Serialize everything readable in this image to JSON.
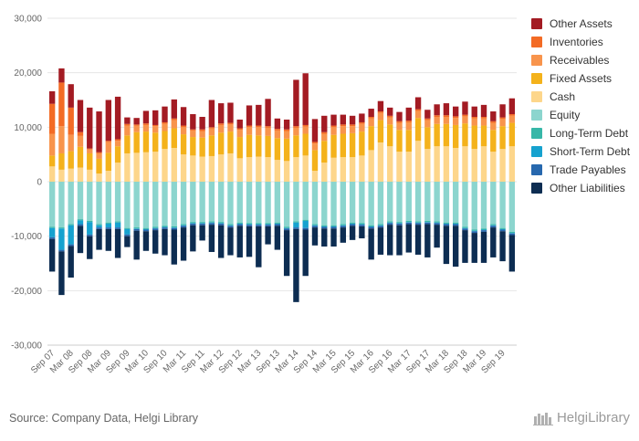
{
  "chart_data": {
    "type": "bar",
    "stacked": true,
    "y_ticks": [
      "30,000",
      "20,000",
      "10,000",
      "0",
      "-10,000",
      "-20,000",
      "-30,000"
    ],
    "ylim": [
      -30000,
      30000
    ],
    "grid": true,
    "legend_position": "right",
    "x_tick_labels": [
      "Sep 07",
      "Mar 08",
      "Sep 08",
      "Mar 09",
      "Sep 09",
      "Mar 10",
      "Sep 10",
      "Mar 11",
      "Sep 11",
      "Mar 12",
      "Sep 12",
      "Mar 13",
      "Sep 13",
      "Mar 14",
      "Sep 14",
      "Mar 15",
      "Sep 15",
      "Mar 16",
      "Sep 16",
      "Mar 17",
      "Sep 17",
      "Mar 18",
      "Sep 18",
      "Mar 19",
      "Sep 19"
    ],
    "categories": [
      "Sep 07",
      "Dec 07",
      "Mar 08",
      "Jun 08",
      "Sep 08",
      "Dec 08",
      "Mar 09",
      "Jun 09",
      "Sep 09",
      "Dec 09",
      "Mar 10",
      "Jun 10",
      "Sep 10",
      "Dec 10",
      "Mar 11",
      "Jun 11",
      "Sep 11",
      "Dec 11",
      "Mar 12",
      "Jun 12",
      "Sep 12",
      "Dec 12",
      "Mar 13",
      "Jun 13",
      "Sep 13",
      "Dec 13",
      "Mar 14",
      "Jun 14",
      "Sep 14",
      "Dec 14",
      "Mar 15",
      "Jun 15",
      "Sep 15",
      "Dec 15",
      "Mar 16",
      "Jun 16",
      "Sep 16",
      "Dec 16",
      "Mar 17",
      "Jun 17",
      "Sep 17",
      "Dec 17",
      "Mar 18",
      "Jun 18",
      "Sep 18",
      "Dec 18",
      "Mar 19",
      "Jun 19",
      "Sep 19",
      "Dec 19"
    ],
    "series": [
      {
        "name": "Cash",
        "side": "asset",
        "color": "#fdd68b",
        "values": [
          2800,
          2200,
          2400,
          2600,
          2200,
          1500,
          2000,
          3500,
          5200,
          5300,
          5400,
          5500,
          6000,
          6200,
          5000,
          4800,
          4600,
          4700,
          5000,
          5200,
          4300,
          4500,
          4600,
          4500,
          4000,
          3800,
          4500,
          4800,
          2000,
          3500,
          4400,
          4500,
          4500,
          4800,
          5800,
          7200,
          6500,
          5500,
          5500,
          7500,
          6000,
          6500,
          6500,
          6200,
          6500,
          6000,
          6500,
          5500,
          6000,
          6500
        ]
      },
      {
        "name": "Fixed Assets",
        "side": "asset",
        "color": "#f4b21b",
        "values": [
          2000,
          3000,
          3200,
          3800,
          3000,
          2700,
          3300,
          3000,
          3300,
          3800,
          3800,
          3500,
          3300,
          3600,
          3700,
          3400,
          3500,
          3800,
          4000,
          4000,
          3900,
          4100,
          3900,
          3900,
          4000,
          4100,
          4000,
          4000,
          3800,
          4000,
          4200,
          4300,
          4400,
          4400,
          4400,
          4100,
          4000,
          4000,
          4000,
          4200,
          4000,
          4100,
          4100,
          4200,
          4200,
          4300,
          3800,
          4000,
          4200,
          4300
        ]
      },
      {
        "name": "Receivables",
        "side": "asset",
        "color": "#f8944c",
        "values": [
          4000,
          5000,
          3000,
          2000,
          700,
          1000,
          2000,
          1000,
          1800,
          1200,
          1200,
          1200,
          1300,
          1500,
          1300,
          1200,
          1200,
          1300,
          1400,
          1300,
          1300,
          1400,
          1500,
          1500,
          1400,
          1400,
          1400,
          1300,
          1200,
          1300,
          1400,
          1400,
          1300,
          1400,
          1400,
          1300,
          1300,
          1300,
          1400,
          1300,
          1300,
          1300,
          1300,
          1300,
          1300,
          1300,
          1300,
          1300,
          1300,
          1300
        ]
      },
      {
        "name": "Inventories",
        "side": "asset",
        "color": "#f36b25",
        "values": [
          5500,
          8000,
          5000,
          700,
          200,
          200,
          200,
          300,
          300,
          200,
          300,
          200,
          300,
          300,
          300,
          200,
          300,
          200,
          300,
          300,
          300,
          300,
          300,
          300,
          300,
          300,
          300,
          300,
          300,
          300,
          300,
          300,
          300,
          300,
          300,
          300,
          300,
          300,
          300,
          300,
          300,
          300,
          300,
          300,
          300,
          300,
          300,
          300,
          300,
          300
        ]
      },
      {
        "name": "Other Assets",
        "side": "asset",
        "color": "#a31b23",
        "values": [
          2300,
          2600,
          4300,
          5900,
          7500,
          7500,
          7500,
          7800,
          1200,
          1200,
          2300,
          2700,
          2900,
          3500,
          3400,
          2800,
          2300,
          5000,
          3700,
          3700,
          1600,
          3700,
          3800,
          5000,
          1900,
          1800,
          8500,
          9500,
          4200,
          3000,
          2000,
          1800,
          1600,
          1600,
          1500,
          1900,
          1500,
          1700,
          2400,
          2200,
          1600,
          2000,
          2200,
          1800,
          2400,
          1900,
          2200,
          1800,
          2400,
          2900
        ]
      },
      {
        "name": "Equity",
        "side": "liability",
        "color": "#8cd5ce",
        "values": [
          8300,
          8400,
          7800,
          6900,
          7200,
          7800,
          7500,
          7300,
          8500,
          8400,
          8500,
          8300,
          8100,
          8200,
          7800,
          7400,
          7400,
          7300,
          7400,
          7800,
          7500,
          7600,
          7600,
          7600,
          7500,
          8300,
          7300,
          7000,
          7800,
          8000,
          8000,
          7800,
          7500,
          7600,
          8000,
          7800,
          7300,
          7400,
          7200,
          7300,
          7200,
          7300,
          7500,
          7500,
          8300,
          8800,
          8600,
          7800,
          8500,
          9200
        ]
      },
      {
        "name": "Long-Term Debt",
        "side": "liability",
        "color": "#37b7a8",
        "values": [
          200,
          200,
          200,
          200,
          200,
          200,
          200,
          200,
          200,
          200,
          200,
          200,
          200,
          200,
          200,
          200,
          200,
          200,
          200,
          200,
          200,
          200,
          200,
          200,
          200,
          200,
          200,
          200,
          200,
          200,
          200,
          200,
          200,
          200,
          200,
          200,
          200,
          200,
          200,
          200,
          200,
          200,
          200,
          200,
          200,
          200,
          200,
          200,
          200,
          200
        ]
      },
      {
        "name": "Short-Term Debt",
        "side": "liability",
        "color": "#16a2cf",
        "values": [
          1700,
          3900,
          3500,
          700,
          2300,
          400,
          700,
          900,
          1000,
          100,
          100,
          100,
          100,
          100,
          100,
          100,
          100,
          100,
          100,
          100,
          100,
          100,
          100,
          100,
          100,
          100,
          900,
          1300,
          100,
          100,
          100,
          100,
          100,
          100,
          100,
          100,
          100,
          100,
          100,
          100,
          100,
          100,
          100,
          100,
          100,
          100,
          100,
          100,
          100,
          100
        ]
      },
      {
        "name": "Trade Payables",
        "side": "liability",
        "color": "#2768ae",
        "values": [
          300,
          300,
          300,
          300,
          300,
          300,
          300,
          300,
          300,
          300,
          300,
          300,
          300,
          300,
          300,
          300,
          300,
          300,
          300,
          300,
          300,
          300,
          300,
          300,
          300,
          300,
          300,
          300,
          300,
          300,
          300,
          300,
          300,
          300,
          300,
          300,
          300,
          300,
          300,
          300,
          300,
          300,
          300,
          300,
          300,
          300,
          300,
          300,
          300,
          300
        ]
      },
      {
        "name": "Other Liabilities",
        "side": "liability",
        "color": "#0d2d52",
        "values": [
          6000,
          8000,
          5800,
          5000,
          4200,
          3800,
          4000,
          5300,
          2000,
          5300,
          3600,
          4300,
          4800,
          6400,
          6100,
          4800,
          2800,
          5000,
          6000,
          5100,
          5800,
          5600,
          7500,
          3300,
          4400,
          8400,
          13400,
          8500,
          3300,
          3300,
          3300,
          2800,
          2600,
          2200,
          5700,
          5000,
          5600,
          5500,
          5200,
          5500,
          6100,
          4200,
          7000,
          7500,
          6000,
          5500,
          5700,
          5500,
          5500,
          6700
        ]
      }
    ]
  },
  "legend": [
    {
      "label": "Other Assets",
      "color": "#a31b23"
    },
    {
      "label": "Inventories",
      "color": "#f36b25"
    },
    {
      "label": "Receivables",
      "color": "#f8944c"
    },
    {
      "label": "Fixed Assets",
      "color": "#f4b21b"
    },
    {
      "label": "Cash",
      "color": "#fdd68b"
    },
    {
      "label": "Equity",
      "color": "#8cd5ce"
    },
    {
      "label": "Long-Term Debt",
      "color": "#37b7a8"
    },
    {
      "label": "Short-Term Debt",
      "color": "#16a2cf"
    },
    {
      "label": "Trade Payables",
      "color": "#2768ae"
    },
    {
      "label": "Other Liabilities",
      "color": "#0d2d52"
    }
  ],
  "footer": {
    "source": "Source: Company Data, Helgi Library",
    "brand": "HelgiLibrary"
  }
}
